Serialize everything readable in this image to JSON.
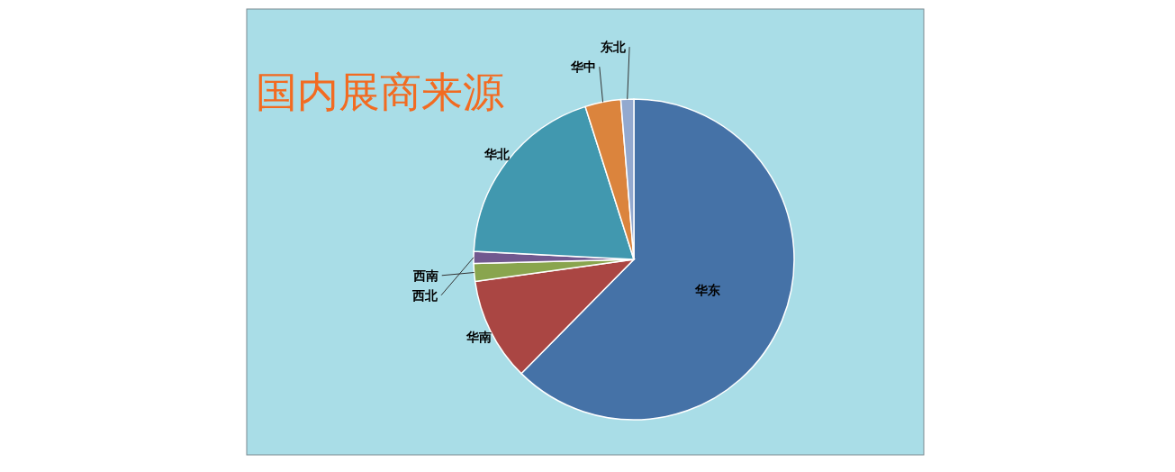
{
  "chart_data": {
    "type": "pie",
    "title": "国内展商来源",
    "categories": [
      "华东",
      "华南",
      "西南",
      "西北",
      "华北",
      "华中",
      "东北"
    ],
    "values": [
      62.4,
      10.4,
      1.8,
      1.2,
      19.3,
      3.6,
      1.3
    ],
    "colors": [
      "#4572a7",
      "#aa4643",
      "#89a54e",
      "#71588f",
      "#4198af",
      "#db843d",
      "#93a9cf"
    ]
  }
}
